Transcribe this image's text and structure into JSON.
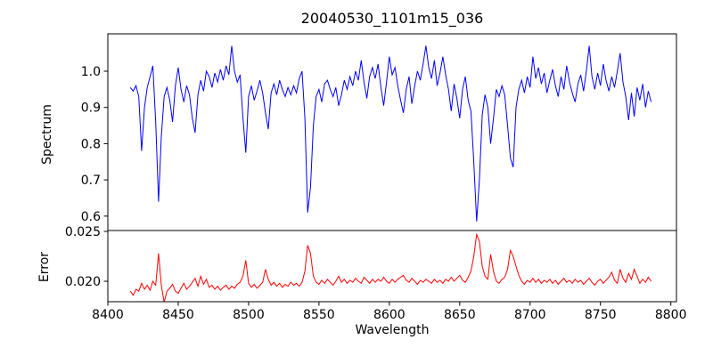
{
  "chart_data": {
    "type": "line",
    "title": "20040530_1101m15_036",
    "xlabel": "Wavelength",
    "xlim": [
      8400,
      8804
    ],
    "xticks": [
      8400,
      8450,
      8500,
      8550,
      8600,
      8650,
      8700,
      8750,
      8800
    ],
    "xtick_labels": [
      "8400",
      "8450",
      "8500",
      "8550",
      "8600",
      "8650",
      "8700",
      "8750",
      "8800"
    ],
    "x_start": 8416,
    "x_step": 2,
    "grid": false,
    "legend": "none",
    "axis_color": "#000000",
    "subplots": [
      {
        "name": "spectrum",
        "ylabel": "Spectrum",
        "color": "#0000ff",
        "ylim": [
          0.5603,
          1.1032
        ],
        "yticks": [
          1.0,
          0.9,
          0.8,
          0.7,
          0.6
        ],
        "ytick_labels": [
          "1.0",
          "0.9",
          "0.8",
          "0.7",
          "0.6"
        ],
        "values": [
          0.955,
          0.945,
          0.96,
          0.93,
          0.78,
          0.9,
          0.955,
          0.985,
          1.015,
          0.86,
          0.64,
          0.82,
          0.93,
          0.955,
          0.92,
          0.86,
          0.96,
          1.01,
          0.95,
          0.915,
          0.96,
          0.935,
          0.87,
          0.83,
          0.935,
          0.975,
          0.945,
          1.0,
          0.985,
          0.955,
          0.995,
          0.97,
          1.005,
          0.975,
          1.015,
          0.99,
          1.07,
          1.0,
          0.97,
          0.99,
          0.87,
          0.775,
          0.93,
          0.96,
          0.92,
          0.945,
          0.975,
          0.94,
          0.885,
          0.84,
          0.94,
          0.965,
          0.935,
          0.975,
          0.95,
          0.93,
          0.955,
          0.935,
          0.96,
          0.94,
          0.98,
          1.0,
          0.87,
          0.61,
          0.68,
          0.85,
          0.93,
          0.95,
          0.915,
          0.965,
          0.975,
          0.95,
          0.93,
          0.955,
          0.905,
          0.935,
          0.975,
          0.95,
          0.985,
          0.96,
          1.0,
          0.975,
          1.03,
          0.97,
          0.925,
          0.985,
          1.01,
          0.98,
          1.02,
          0.955,
          0.905,
          0.97,
          1.04,
          0.99,
          1.01,
          0.96,
          0.92,
          0.885,
          0.95,
          0.985,
          0.91,
          0.96,
          1.0,
          0.975,
          1.02,
          1.07,
          1.01,
          0.98,
          1.03,
          0.96,
          0.995,
          1.04,
          0.99,
          0.95,
          0.89,
          0.965,
          0.925,
          0.87,
          0.95,
          0.985,
          0.92,
          0.89,
          0.75,
          0.585,
          0.7,
          0.88,
          0.935,
          0.9,
          0.8,
          0.87,
          0.95,
          0.93,
          0.96,
          0.935,
          0.85,
          0.76,
          0.735,
          0.9,
          0.95,
          0.975,
          0.94,
          0.985,
          0.955,
          1.04,
          0.98,
          1.01,
          0.965,
          0.995,
          0.94,
          0.975,
          1.005,
          0.96,
          0.93,
          0.985,
          0.95,
          1.015,
          0.97,
          0.94,
          0.915,
          0.965,
          0.99,
          0.945,
          1.0,
          1.07,
          0.985,
          0.95,
          0.995,
          0.96,
          1.02,
          0.975,
          0.945,
          0.985,
          0.955,
          1.0,
          1.05,
          0.97,
          0.93,
          0.865,
          0.94,
          0.875,
          0.955,
          0.92,
          0.965,
          0.9,
          0.945,
          0.915
        ]
      },
      {
        "name": "error",
        "ylabel": "Error",
        "color": "#ff0000",
        "ylim": [
          0.01795,
          0.02509
        ],
        "yticks": [
          0.025,
          0.02
        ],
        "ytick_labels": [
          "0.025",
          "0.020"
        ],
        "values": [
          0.019,
          0.0186,
          0.0192,
          0.019,
          0.0198,
          0.0192,
          0.0196,
          0.0191,
          0.02,
          0.0196,
          0.0228,
          0.0196,
          0.0179,
          0.019,
          0.0193,
          0.0197,
          0.019,
          0.0188,
          0.0193,
          0.0198,
          0.0192,
          0.0195,
          0.0199,
          0.0203,
          0.0195,
          0.0205,
          0.0197,
          0.0202,
          0.0194,
          0.0196,
          0.0192,
          0.0195,
          0.0191,
          0.0194,
          0.0196,
          0.0192,
          0.0195,
          0.0193,
          0.0197,
          0.0199,
          0.0205,
          0.0221,
          0.0198,
          0.0194,
          0.0197,
          0.0193,
          0.0196,
          0.0199,
          0.0212,
          0.0202,
          0.0196,
          0.0199,
          0.0195,
          0.0198,
          0.0194,
          0.0197,
          0.0195,
          0.0199,
          0.0196,
          0.0198,
          0.0195,
          0.0199,
          0.021,
          0.0236,
          0.0228,
          0.0205,
          0.0199,
          0.0197,
          0.0201,
          0.0198,
          0.0202,
          0.0199,
          0.0196,
          0.02,
          0.0205,
          0.0199,
          0.0202,
          0.0198,
          0.0201,
          0.0199,
          0.0203,
          0.02,
          0.0198,
          0.0204,
          0.0201,
          0.0198,
          0.0202,
          0.0199,
          0.0202,
          0.02,
          0.0204,
          0.02,
          0.0198,
          0.0202,
          0.0199,
          0.0202,
          0.0204,
          0.0206,
          0.0201,
          0.0199,
          0.0203,
          0.02,
          0.0197,
          0.0201,
          0.0199,
          0.0202,
          0.02,
          0.0198,
          0.0202,
          0.0199,
          0.0201,
          0.0198,
          0.0202,
          0.02,
          0.0204,
          0.02,
          0.0203,
          0.0206,
          0.0201,
          0.0199,
          0.0204,
          0.021,
          0.0225,
          0.0247,
          0.024,
          0.0215,
          0.0205,
          0.0202,
          0.0227,
          0.021,
          0.02,
          0.0198,
          0.0202,
          0.0204,
          0.0212,
          0.0231,
          0.0225,
          0.0215,
          0.0206,
          0.02,
          0.0197,
          0.0201,
          0.0199,
          0.0203,
          0.0199,
          0.0202,
          0.0198,
          0.0201,
          0.0199,
          0.0202,
          0.0198,
          0.0201,
          0.0197,
          0.02,
          0.0203,
          0.0199,
          0.0201,
          0.0198,
          0.0202,
          0.0199,
          0.0201,
          0.0197,
          0.02,
          0.0203,
          0.0199,
          0.0196,
          0.02,
          0.0202,
          0.0198,
          0.0201,
          0.0204,
          0.0209,
          0.0201,
          0.0198,
          0.0212,
          0.0203,
          0.0199,
          0.0208,
          0.0202,
          0.0212,
          0.0205,
          0.0198,
          0.0202,
          0.0199,
          0.0204,
          0.02
        ]
      }
    ]
  }
}
